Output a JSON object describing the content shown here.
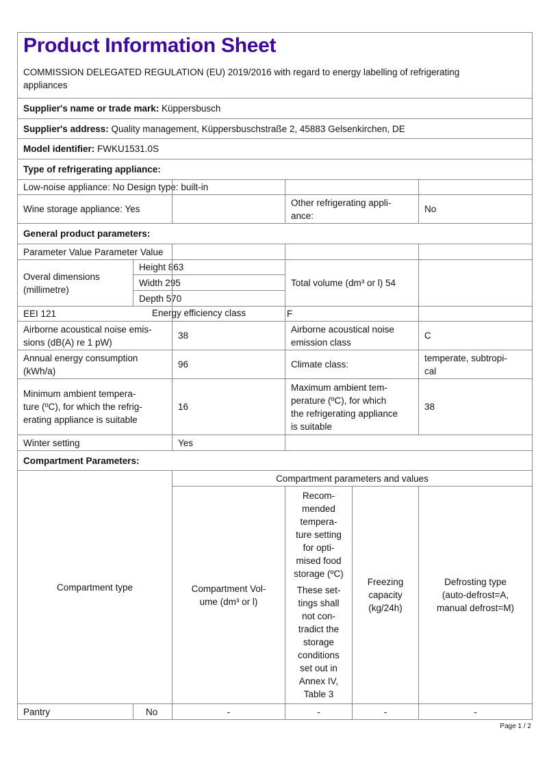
{
  "title": "Product Information Sheet",
  "regulation": "COMMISSION DELEGATED REGULATION (EU) 2019/2016 with regard to energy labelling of refrigerating\nappliances",
  "supplier_name": {
    "label": "Supplier's name or trade mark:",
    "value": " Küppersbusch"
  },
  "supplier_address": {
    "label": "Supplier's address:",
    "value": " Quality management, Küppersbuschstraße 2, 45883 Gelsenkirchen, DE"
  },
  "model": {
    "label": "Model identifier:",
    "value": " FWKU1531.0S"
  },
  "type_heading": "Type of refrigerating appliance:",
  "low_noise": "Low-noise appliance: No Design type: built-in",
  "wine_storage": "Wine storage appliance: Yes",
  "other_appliance": {
    "label": "Other refrigerating appli-\nance:",
    "value": "No"
  },
  "general_heading": "General product parameters:",
  "param_header": "Parameter Value Parameter Value",
  "dimensions": {
    "label": "Overal dimensions\n(millimetre)",
    "height": "Height 863",
    "width": "Width 295",
    "depth": "Depth 570"
  },
  "total_volume": "Total volume (dm³ or l) 54",
  "eei": "EEI 121",
  "energy_class": {
    "label": "Energy efficiency class",
    "value": "F"
  },
  "noise": {
    "label": "Airborne acoustical noise emis-\nsions (dB(A) re 1 pW)",
    "value": "38",
    "class_label": "Airborne acoustical noise\nemission class",
    "class_value": "C"
  },
  "annual": {
    "label": "Annual energy consumption\n(kWh/a)",
    "value": "96",
    "climate_label": "Climate class:",
    "climate_value": "temperate, subtropi-\ncal"
  },
  "min_ambient": {
    "label": "Minimum ambient tempera-\nture (ºC), for which the refrig-\nerating appliance is suitable",
    "value": "16"
  },
  "max_ambient": {
    "label": "Maximum ambient tem-\nperature (ºC), for which\nthe refrigerating appliance\nis suitable",
    "value": "38"
  },
  "winter": {
    "label": "Winter setting",
    "value": "Yes"
  },
  "compartment_heading": "Compartment Parameters:",
  "compartment_table": {
    "type_header": "Compartment type",
    "group_header": "Compartment parameters and values",
    "volume_header": "Compartment Vol-\nume (dm³ or l)",
    "temp_header_1": "Recom-\nmended\ntempera-\nture setting\nfor opti-\nmised food\nstorage (ºC)",
    "temp_header_2": "These set-\ntings shall\nnot con-\ntradict the\nstorage\nconditions\nset out in\nAnnex IV,\nTable 3",
    "freezing_header": "Freezing\ncapacity\n(kg/24h)",
    "defrost_header": "Defrosting type\n(auto-defrost=A,\nmanual defrost=M)",
    "rows": [
      {
        "type": "Pantry",
        "present": "No",
        "volume": "-",
        "temp": "-",
        "freezing": "-",
        "defrost": "-"
      }
    ]
  },
  "page": "Page 1 / 2",
  "colors": {
    "title": "#3d0a99",
    "border": "#8a8a8a"
  }
}
